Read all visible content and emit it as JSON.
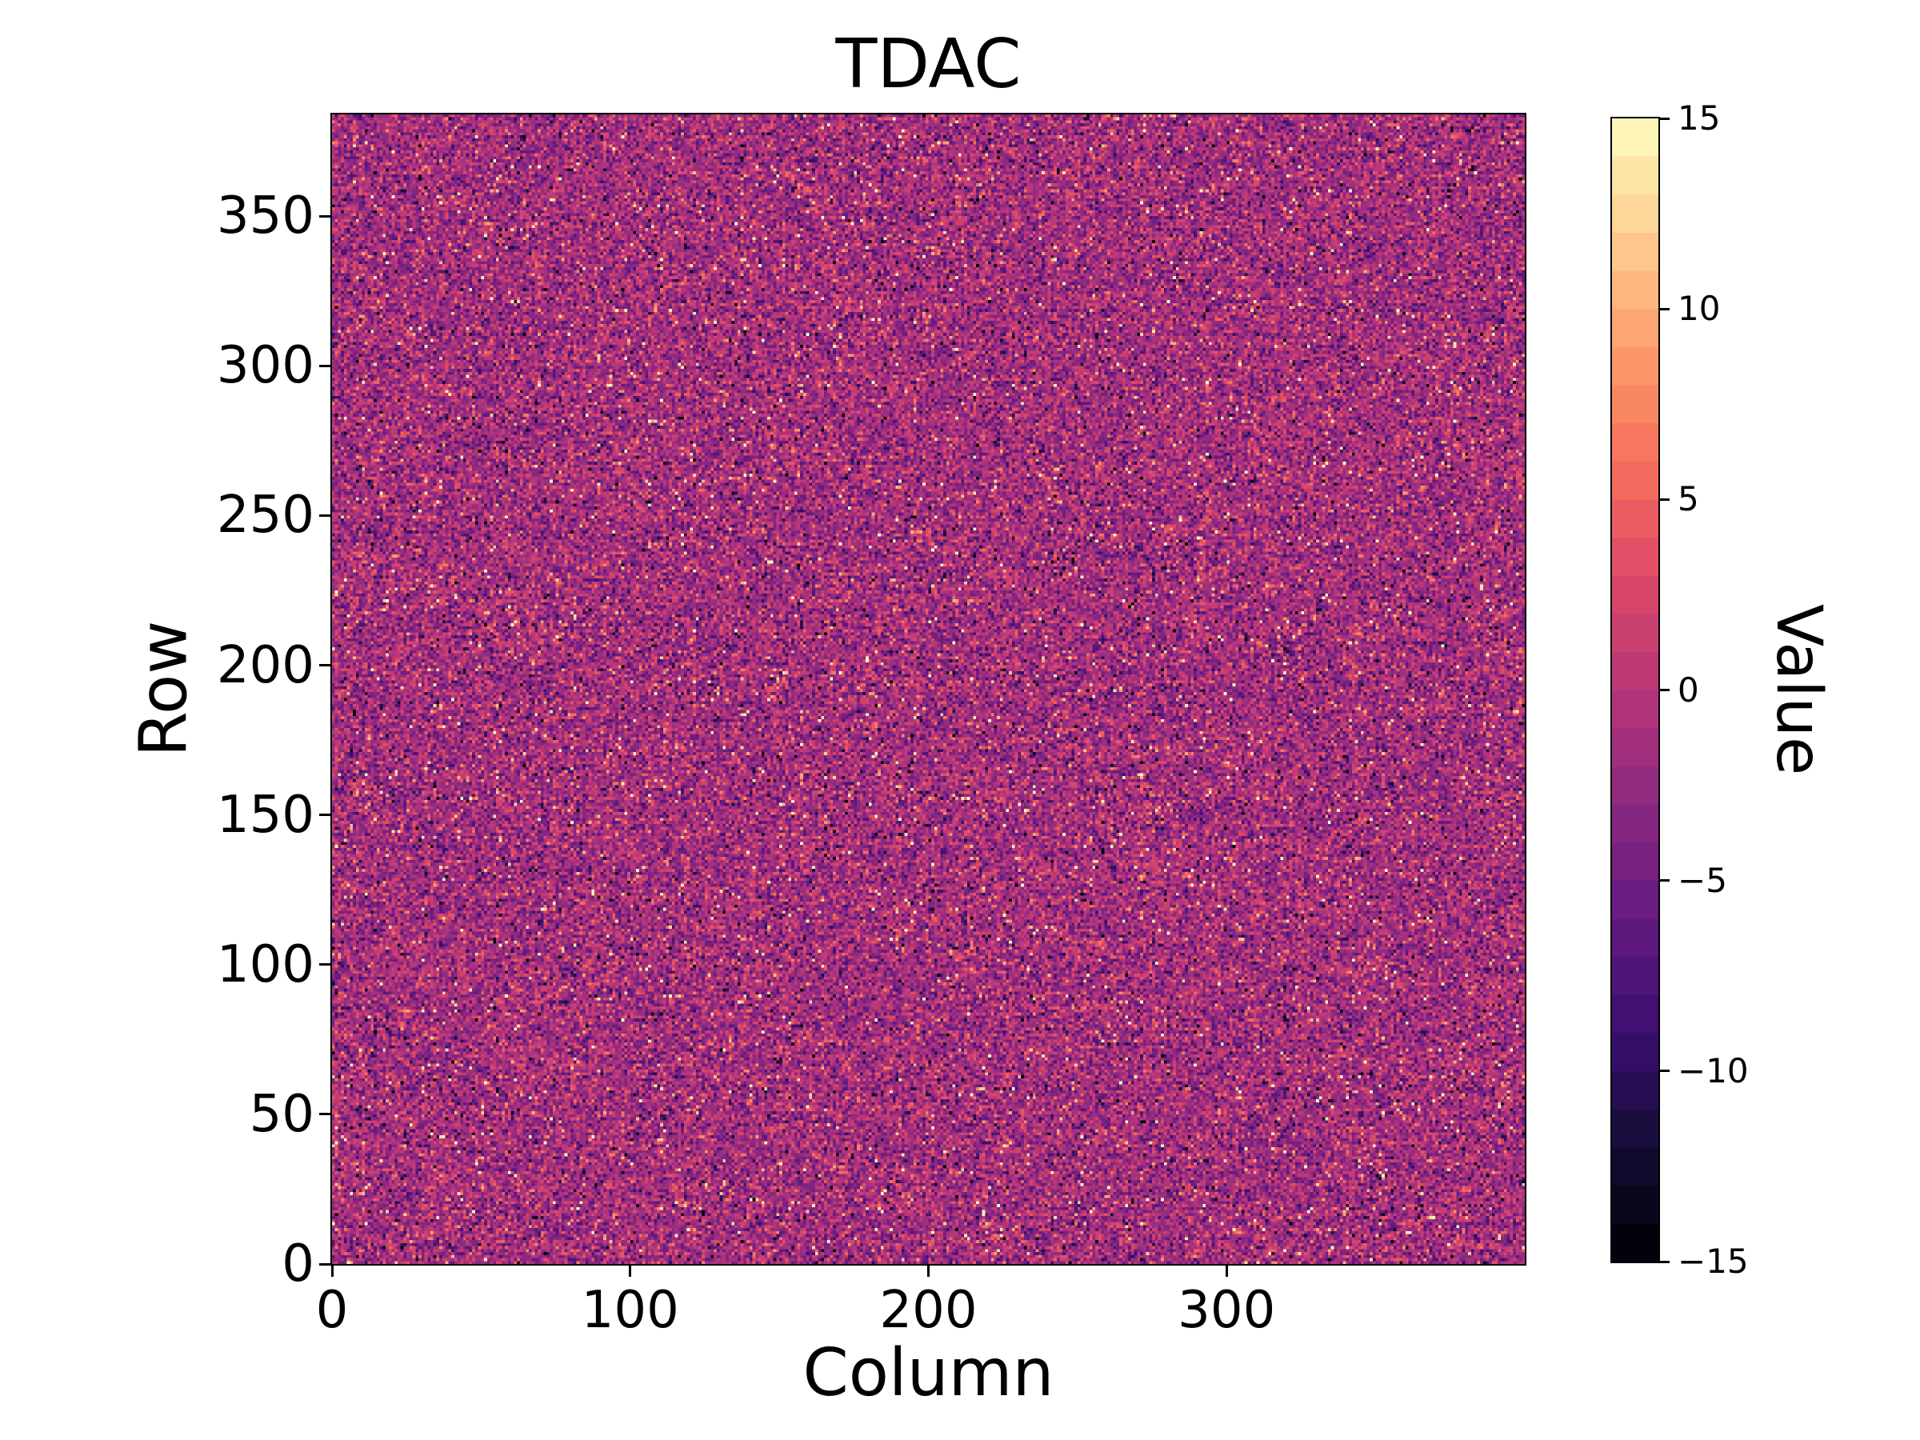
{
  "figure": {
    "background": "#ffffff",
    "text_color": "#000000"
  },
  "chart_data": {
    "type": "heatmap",
    "title": "TDAC",
    "xlabel": "Column",
    "ylabel": "Row",
    "colorbar_label": "Value",
    "x_range": [
      0,
      400
    ],
    "y_range": [
      0,
      384
    ],
    "value_range": [
      -15,
      15
    ],
    "grid": {
      "cols": 400,
      "rows": 384
    },
    "x_ticks": [
      {
        "value": 0,
        "label": "0"
      },
      {
        "value": 100,
        "label": "100"
      },
      {
        "value": 200,
        "label": "200"
      },
      {
        "value": 300,
        "label": "300"
      }
    ],
    "y_ticks": [
      {
        "value": 0,
        "label": "0"
      },
      {
        "value": 50,
        "label": "50"
      },
      {
        "value": 100,
        "label": "100"
      },
      {
        "value": 150,
        "label": "150"
      },
      {
        "value": 200,
        "label": "200"
      },
      {
        "value": 250,
        "label": "250"
      },
      {
        "value": 300,
        "label": "300"
      },
      {
        "value": 350,
        "label": "350"
      }
    ],
    "colorbar_ticks": [
      {
        "value": 15,
        "label": "15"
      },
      {
        "value": 10,
        "label": "10"
      },
      {
        "value": 5,
        "label": "5"
      },
      {
        "value": 0,
        "label": "0"
      },
      {
        "value": -5,
        "label": "−5"
      },
      {
        "value": -10,
        "label": "−10"
      },
      {
        "value": -15,
        "label": "−15"
      }
    ],
    "colorbar_levels": 30,
    "colormap": {
      "name": "magma",
      "stops": [
        [
          0.0,
          "#000004"
        ],
        [
          0.1,
          "#140e36"
        ],
        [
          0.2,
          "#3b0f70"
        ],
        [
          0.3,
          "#641a80"
        ],
        [
          0.4,
          "#8c2981"
        ],
        [
          0.5,
          "#b73779"
        ],
        [
          0.6,
          "#de4968"
        ],
        [
          0.7,
          "#f7705c"
        ],
        [
          0.8,
          "#fe9f6d"
        ],
        [
          0.9,
          "#fecf92"
        ],
        [
          1.0,
          "#fcfdbf"
        ]
      ]
    },
    "noise_model": {
      "distribution": "gaussian_with_uniform_outliers",
      "mean": -1.5,
      "std": 3.3,
      "outlier_fraction": 0.07,
      "seed": 42
    }
  }
}
